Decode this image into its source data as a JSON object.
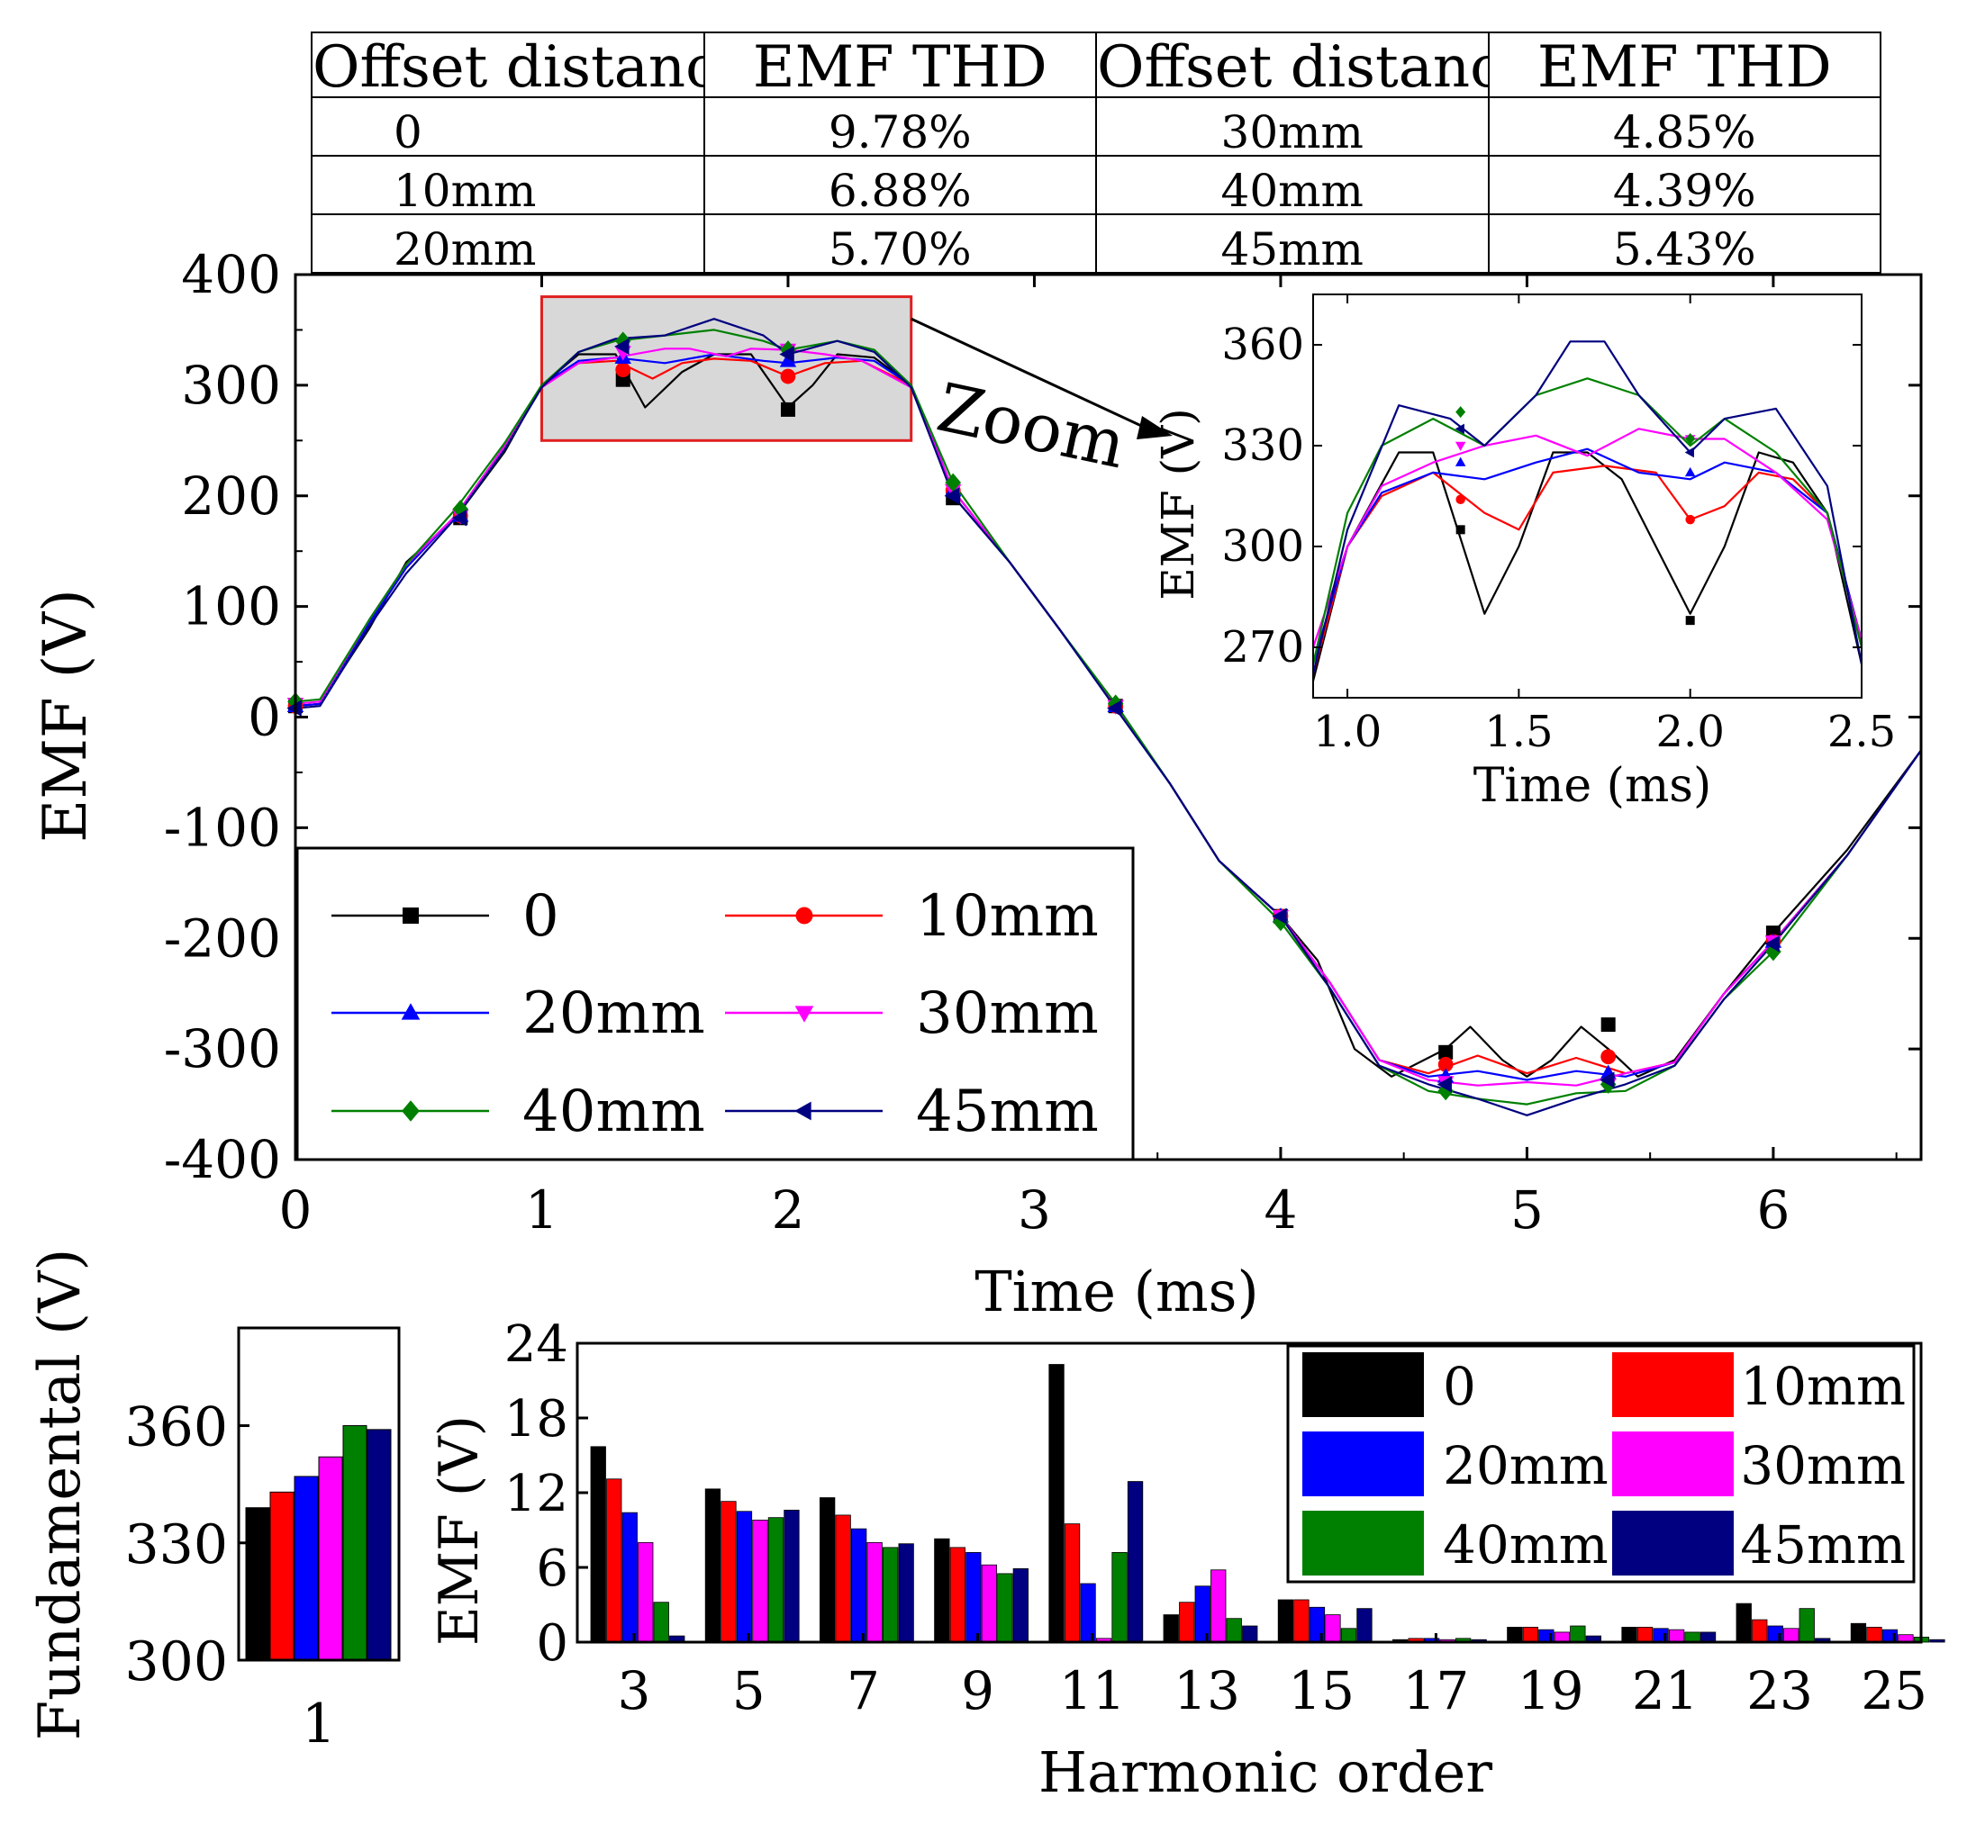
{
  "table": {
    "headers": [
      "Offset distance",
      "EMF THD",
      "Offset distance",
      "EMF THD"
    ],
    "rows": [
      [
        "0",
        "9.78%",
        "30mm",
        "4.85%"
      ],
      [
        "10mm",
        "6.88%",
        "40mm",
        "4.39%"
      ],
      [
        "20mm",
        "5.70%",
        "45mm",
        "5.43%"
      ]
    ]
  },
  "zoom_label": "Zoom",
  "colors": {
    "0": "#000000",
    "10mm": "#ff0000",
    "20mm": "#0000ff",
    "30mm": "#ff00ff",
    "40mm": "#008000",
    "45mm": "#000080",
    "zoom_box": "#e02020",
    "zoom_fill": "#d8d8d8"
  },
  "chart_data": [
    {
      "id": "main",
      "type": "line",
      "title": "",
      "xlabel": "Time (ms)",
      "ylabel": "EMF (V)",
      "xlim": [
        0,
        6.6
      ],
      "ylim": [
        -400,
        400
      ],
      "xticks": [
        "0",
        "1",
        "2",
        "3",
        "4",
        "5",
        "6"
      ],
      "yticks": [
        "-400",
        "-300",
        "-200",
        "-100",
        "0",
        "100",
        "200",
        "300",
        "400"
      ],
      "legend": [
        "0",
        "10mm",
        "20mm",
        "30mm",
        "40mm",
        "45mm"
      ],
      "legend_position": "bottom-left",
      "zoom_region": {
        "x": [
          1.0,
          2.5
        ],
        "y": [
          250,
          380
        ]
      },
      "series": [
        {
          "name": "0",
          "marker": "square",
          "x": [
            0,
            0.1,
            0.3,
            0.45,
            0.65,
            0.85,
            1.0,
            1.15,
            1.3,
            1.42,
            1.57,
            1.7,
            1.85,
            2.0,
            2.1,
            2.2,
            2.35,
            2.5,
            2.67,
            2.9,
            3.1,
            3.33,
            3.55,
            3.75,
            4.0,
            4.15,
            4.3,
            4.45,
            4.67,
            4.77,
            4.9,
            5.0,
            5.1,
            5.22,
            5.33,
            5.45,
            5.6,
            5.8,
            6.0,
            6.3,
            6.6
          ],
          "y": [
            10,
            12,
            80,
            140,
            180,
            240,
            300,
            328,
            328,
            280,
            312,
            328,
            328,
            280,
            300,
            328,
            325,
            300,
            200,
            140,
            80,
            10,
            -60,
            -130,
            -180,
            -220,
            -300,
            -325,
            -300,
            -280,
            -310,
            -325,
            -310,
            -280,
            -300,
            -325,
            -310,
            -250,
            -195,
            -120,
            -30
          ],
          "markers_x": [
            0,
            0.67,
            1.33,
            2.0,
            2.67,
            3.33,
            4.0,
            4.67,
            5.33,
            6.0
          ],
          "markers_y": [
            10,
            180,
            305,
            278,
            198,
            10,
            -180,
            -303,
            -278,
            -195
          ]
        },
        {
          "name": "10mm",
          "marker": "circle",
          "x": [
            0,
            0.1,
            0.3,
            0.45,
            0.65,
            0.85,
            1.0,
            1.15,
            1.3,
            1.45,
            1.57,
            1.7,
            1.85,
            2.0,
            2.15,
            2.3,
            2.5,
            2.67,
            2.9,
            3.1,
            3.33,
            3.55,
            3.75,
            4.0,
            4.2,
            4.4,
            4.6,
            4.8,
            5.0,
            5.2,
            5.4,
            5.6,
            5.8,
            6.0,
            6.3,
            6.6
          ],
          "y": [
            10,
            12,
            85,
            135,
            182,
            245,
            300,
            320,
            322,
            306,
            320,
            324,
            322,
            308,
            320,
            322,
            300,
            205,
            140,
            80,
            10,
            -60,
            -130,
            -180,
            -240,
            -310,
            -322,
            -306,
            -322,
            -308,
            -322,
            -312,
            -250,
            -203,
            -125,
            -30
          ],
          "markers_x": [
            0,
            0.67,
            1.33,
            2.0,
            2.67,
            3.33,
            4.0,
            4.67,
            5.33,
            6.0
          ],
          "markers_y": [
            10,
            182,
            314,
            308,
            205,
            10,
            -180,
            -314,
            -307,
            -203
          ]
        },
        {
          "name": "20mm",
          "marker": "triangle-up",
          "x": [
            0,
            0.1,
            0.3,
            0.45,
            0.65,
            0.85,
            1.0,
            1.15,
            1.3,
            1.5,
            1.7,
            1.9,
            2.0,
            2.2,
            2.35,
            2.5,
            2.67,
            2.9,
            3.1,
            3.33,
            3.55,
            3.75,
            4.0,
            4.2,
            4.4,
            4.6,
            4.8,
            5.0,
            5.2,
            5.4,
            5.6,
            5.8,
            6.0,
            6.3,
            6.6
          ],
          "y": [
            10,
            12,
            85,
            135,
            182,
            245,
            300,
            322,
            325,
            320,
            328,
            322,
            320,
            325,
            322,
            300,
            205,
            140,
            80,
            10,
            -60,
            -130,
            -180,
            -240,
            -310,
            -325,
            -320,
            -328,
            -320,
            -325,
            -312,
            -250,
            -203,
            -125,
            -30
          ],
          "markers_x": [
            0,
            0.67,
            1.33,
            2.0,
            2.67,
            3.33,
            4.0,
            4.67,
            5.33,
            6.0
          ],
          "markers_y": [
            10,
            182,
            325,
            322,
            205,
            10,
            -180,
            -325,
            -322,
            -203
          ]
        },
        {
          "name": "30mm",
          "marker": "triangle-down",
          "x": [
            0,
            0.1,
            0.3,
            0.45,
            0.65,
            0.85,
            1.0,
            1.15,
            1.3,
            1.5,
            1.6,
            1.75,
            1.85,
            2.0,
            2.15,
            2.3,
            2.5,
            2.67,
            2.9,
            3.1,
            3.33,
            3.55,
            3.75,
            4.0,
            4.2,
            4.4,
            4.6,
            4.8,
            5.0,
            5.2,
            5.4,
            5.6,
            5.8,
            6.0,
            6.3,
            6.6
          ],
          "y": [
            12,
            14,
            88,
            138,
            182,
            245,
            298,
            320,
            325,
            333,
            333,
            326,
            333,
            332,
            328,
            322,
            298,
            205,
            140,
            80,
            10,
            -60,
            -130,
            -180,
            -240,
            -310,
            -328,
            -333,
            -330,
            -333,
            -322,
            -312,
            -250,
            -203,
            -125,
            -30
          ],
          "markers_x": [
            0,
            0.67,
            1.33,
            2.0,
            2.67,
            3.33,
            4.0,
            4.67,
            5.33,
            6.0
          ],
          "markers_y": [
            12,
            182,
            330,
            332,
            205,
            10,
            -180,
            -330,
            -332,
            -203
          ]
        },
        {
          "name": "40mm",
          "marker": "diamond",
          "x": [
            0,
            0.1,
            0.3,
            0.45,
            0.65,
            0.85,
            1.0,
            1.15,
            1.3,
            1.5,
            1.7,
            1.9,
            2.0,
            2.2,
            2.35,
            2.5,
            2.67,
            2.9,
            3.1,
            3.33,
            3.55,
            3.75,
            4.0,
            4.2,
            4.4,
            4.6,
            4.8,
            5.0,
            5.2,
            5.4,
            5.6,
            5.8,
            6.0,
            6.3,
            6.6
          ],
          "y": [
            14,
            16,
            88,
            138,
            188,
            248,
            300,
            330,
            340,
            345,
            350,
            340,
            332,
            340,
            332,
            300,
            212,
            140,
            80,
            12,
            -60,
            -130,
            -185,
            -245,
            -315,
            -338,
            -345,
            -350,
            -340,
            -338,
            -315,
            -255,
            -212,
            -125,
            -30
          ],
          "markers_x": [
            0,
            0.67,
            1.33,
            2.0,
            2.67,
            3.33,
            4.0,
            4.67,
            5.33,
            6.0
          ],
          "markers_y": [
            14,
            188,
            340,
            332,
            212,
            12,
            -185,
            -338,
            -332,
            -212
          ]
        },
        {
          "name": "45mm",
          "marker": "triangle-left",
          "x": [
            0,
            0.1,
            0.3,
            0.45,
            0.65,
            0.85,
            1.0,
            1.15,
            1.3,
            1.5,
            1.7,
            1.9,
            2.0,
            2.2,
            2.35,
            2.5,
            2.67,
            2.9,
            3.1,
            3.33,
            3.55,
            3.75,
            4.0,
            4.2,
            4.4,
            4.6,
            4.8,
            5.0,
            5.2,
            5.4,
            5.6,
            5.8,
            6.0,
            6.3,
            6.6
          ],
          "y": [
            8,
            10,
            82,
            130,
            180,
            242,
            298,
            330,
            342,
            345,
            360,
            345,
            328,
            340,
            330,
            298,
            200,
            140,
            80,
            8,
            -60,
            -130,
            -180,
            -245,
            -315,
            -332,
            -345,
            -360,
            -345,
            -332,
            -315,
            -255,
            -205,
            -125,
            -30
          ],
          "markers_x": [
            0,
            0.67,
            1.33,
            2.0,
            2.67,
            3.33,
            4.0,
            4.67,
            5.33,
            6.0
          ],
          "markers_y": [
            8,
            180,
            335,
            328,
            200,
            8,
            -180,
            -332,
            -328,
            -205
          ]
        }
      ]
    },
    {
      "id": "zoom_inset",
      "type": "line",
      "title": "",
      "xlabel": "Time (ms)",
      "ylabel": "EMF (V)",
      "xlim": [
        0.9,
        2.5
      ],
      "ylim": [
        255,
        375
      ],
      "xticks": [
        "1.0",
        "1.5",
        "2.0",
        "2.5"
      ],
      "yticks": [
        "270",
        "300",
        "330",
        "360"
      ],
      "series": [
        {
          "name": "0",
          "x": [
            0.9,
            1.0,
            1.15,
            1.25,
            1.4,
            1.5,
            1.6,
            1.7,
            1.8,
            1.9,
            2.0,
            2.1,
            2.2,
            2.3,
            2.4,
            2.5
          ],
          "y": [
            260,
            300,
            328,
            328,
            280,
            300,
            328,
            328,
            320,
            300,
            280,
            300,
            328,
            325,
            310,
            265
          ]
        },
        {
          "name": "10mm",
          "x": [
            0.9,
            1.0,
            1.1,
            1.25,
            1.4,
            1.5,
            1.6,
            1.75,
            1.9,
            2.0,
            2.1,
            2.2,
            2.3,
            2.4,
            2.5
          ],
          "y": [
            262,
            300,
            315,
            322,
            310,
            305,
            322,
            324,
            322,
            308,
            312,
            322,
            320,
            310,
            272
          ]
        },
        {
          "name": "20mm",
          "x": [
            0.9,
            1.0,
            1.1,
            1.25,
            1.4,
            1.55,
            1.7,
            1.85,
            2.0,
            2.1,
            2.25,
            2.4,
            2.5
          ],
          "y": [
            265,
            300,
            316,
            322,
            320,
            325,
            329,
            322,
            320,
            325,
            322,
            310,
            272
          ]
        },
        {
          "name": "30mm",
          "x": [
            0.9,
            1.0,
            1.1,
            1.25,
            1.4,
            1.55,
            1.7,
            1.85,
            2.0,
            2.1,
            2.25,
            2.4,
            2.5
          ],
          "y": [
            270,
            300,
            318,
            325,
            330,
            333,
            327,
            335,
            332,
            332,
            322,
            308,
            272
          ]
        },
        {
          "name": "40mm",
          "x": [
            0.9,
            1.0,
            1.1,
            1.25,
            1.4,
            1.55,
            1.7,
            1.85,
            2.0,
            2.1,
            2.25,
            2.4,
            2.5
          ],
          "y": [
            265,
            310,
            330,
            338,
            330,
            345,
            350,
            345,
            330,
            338,
            328,
            310,
            270
          ]
        },
        {
          "name": "45mm",
          "x": [
            0.9,
            1.0,
            1.15,
            1.3,
            1.4,
            1.55,
            1.65,
            1.75,
            1.85,
            2.0,
            2.1,
            2.25,
            2.4,
            2.5
          ],
          "y": [
            262,
            305,
            342,
            338,
            330,
            345,
            361,
            361,
            345,
            328,
            338,
            341,
            318,
            265
          ]
        }
      ]
    },
    {
      "id": "fundamental",
      "type": "bar",
      "title": "",
      "xlabel": "",
      "ylabel": "Fundamental (V)",
      "categories": [
        "1"
      ],
      "ylim": [
        300,
        385
      ],
      "yticks": [
        "300",
        "330",
        "360"
      ],
      "series": [
        {
          "name": "0",
          "values": [
            339
          ]
        },
        {
          "name": "10mm",
          "values": [
            343
          ]
        },
        {
          "name": "20mm",
          "values": [
            347
          ]
        },
        {
          "name": "30mm",
          "values": [
            352
          ]
        },
        {
          "name": "40mm",
          "values": [
            360
          ]
        },
        {
          "name": "45mm",
          "values": [
            359
          ]
        }
      ]
    },
    {
      "id": "harmonics",
      "type": "bar",
      "title": "",
      "xlabel": "Harmonic order",
      "ylabel": "EMF (V)",
      "categories": [
        "3",
        "5",
        "7",
        "9",
        "11",
        "13",
        "15",
        "17",
        "19",
        "21",
        "23",
        "25"
      ],
      "ylim": [
        0,
        24
      ],
      "yticks": [
        "0",
        "6",
        "12",
        "18",
        "24"
      ],
      "legend": [
        "0",
        "10mm",
        "20mm",
        "30mm",
        "40mm",
        "45mm"
      ],
      "legend_position": "top-right",
      "series": [
        {
          "name": "0",
          "values": [
            15.7,
            12.3,
            11.6,
            8.3,
            22.3,
            2.2,
            3.4,
            0.2,
            1.2,
            1.2,
            3.1,
            1.5
          ]
        },
        {
          "name": "10mm",
          "values": [
            13.1,
            11.3,
            10.2,
            7.6,
            9.5,
            3.2,
            3.4,
            0.3,
            1.2,
            1.2,
            1.8,
            1.2
          ]
        },
        {
          "name": "20mm",
          "values": [
            10.4,
            10.5,
            9.1,
            7.2,
            4.7,
            4.5,
            2.8,
            0.3,
            1.0,
            1.1,
            1.3,
            1.0
          ]
        },
        {
          "name": "30mm",
          "values": [
            8.0,
            9.8,
            8.0,
            6.2,
            0.3,
            5.8,
            2.2,
            0.2,
            0.8,
            1.0,
            1.1,
            0.6
          ]
        },
        {
          "name": "40mm",
          "values": [
            3.2,
            10.0,
            7.6,
            5.5,
            7.2,
            1.9,
            1.1,
            0.3,
            1.3,
            0.8,
            2.7,
            0.4
          ]
        },
        {
          "name": "45mm",
          "values": [
            0.5,
            10.6,
            7.9,
            5.9,
            12.9,
            1.3,
            2.7,
            0.2,
            0.5,
            0.8,
            0.3,
            0.2
          ]
        }
      ]
    }
  ]
}
